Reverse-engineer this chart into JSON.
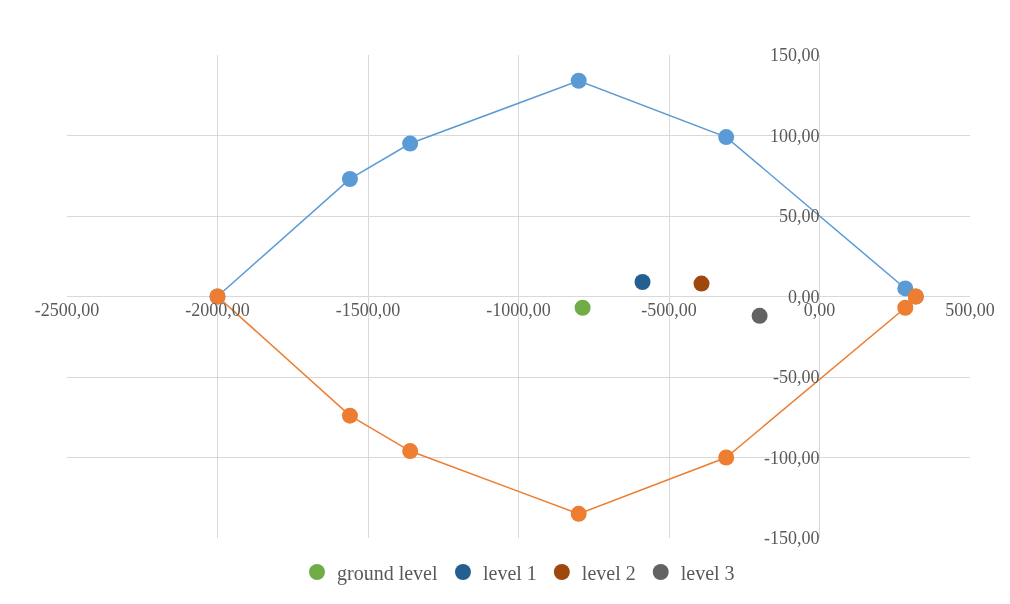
{
  "chart_data": {
    "type": "scatter",
    "xlim": [
      -2500,
      500
    ],
    "xticks": [
      {
        "value": -2500,
        "label": "-2500,00"
      },
      {
        "value": -2000,
        "label": "-2000,00"
      },
      {
        "value": -1500,
        "label": "-1500,00"
      },
      {
        "value": -1000,
        "label": "-1000,00"
      },
      {
        "value": -500,
        "label": "-500,00"
      },
      {
        "value": 0,
        "label": "0,00"
      },
      {
        "value": 500,
        "label": "500,00"
      }
    ],
    "ylim": [
      -150,
      150
    ],
    "yticks": [
      {
        "value": -150,
        "label": "-150,00"
      },
      {
        "value": -100,
        "label": "-100,00"
      },
      {
        "value": -50,
        "label": "-50,00"
      },
      {
        "value": 0,
        "label": "0,00"
      },
      {
        "value": 50,
        "label": "50,00"
      },
      {
        "value": 100,
        "label": "100,00"
      },
      {
        "value": 150,
        "label": "150,00"
      }
    ],
    "grid": true,
    "legend": "bottom",
    "marker": "circle",
    "series": [
      {
        "type": "line",
        "color": "#5b9bd5",
        "x": [
          -2000,
          -1560,
          -1360,
          -800,
          -310,
          285,
          320
        ],
        "values": [
          0,
          73,
          95,
          134,
          99,
          5,
          0
        ]
      },
      {
        "type": "line",
        "color": "#ed7d31",
        "x": [
          -2000,
          -1560,
          -1360,
          -800,
          -310,
          285,
          320
        ],
        "values": [
          0,
          -74,
          -96,
          -135,
          -100,
          -7,
          0
        ]
      },
      {
        "name": "ground level",
        "color": "#70ad47",
        "x": [
          -787
        ],
        "values": [
          -7
        ]
      },
      {
        "name": "level 1",
        "color": "#255e91",
        "x": [
          -588
        ],
        "values": [
          9
        ]
      },
      {
        "name": "level 2",
        "color": "#9e480e",
        "x": [
          -392
        ],
        "values": [
          8
        ]
      },
      {
        "name": "level 3",
        "color": "#636363",
        "x": [
          -199
        ],
        "values": [
          -12
        ]
      }
    ]
  }
}
